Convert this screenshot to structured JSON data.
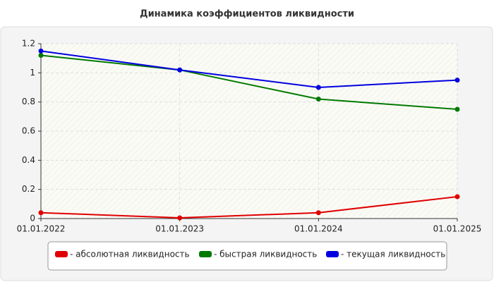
{
  "chart_data": {
    "type": "line",
    "title": "Динамика коэффициентов ликвидности",
    "categories": [
      "01.01.2022",
      "01.01.2023",
      "01.01.2024",
      "01.01.2025"
    ],
    "series": [
      {
        "name": "- абсолютная ликвидность",
        "color": "#e00000",
        "values": [
          0.04,
          0.005,
          0.04,
          0.15
        ]
      },
      {
        "name": "- быстрая ликвидность",
        "color": "#007a00",
        "values": [
          1.12,
          1.02,
          0.82,
          0.75
        ]
      },
      {
        "name": "- текущая ликвидность",
        "color": "#0000e0",
        "values": [
          1.15,
          1.02,
          0.9,
          0.95
        ]
      }
    ],
    "ylim": [
      0,
      1.2
    ],
    "yticks": [
      0,
      0.2,
      0.4,
      0.6,
      0.8,
      1,
      1.2
    ],
    "grid": true
  }
}
